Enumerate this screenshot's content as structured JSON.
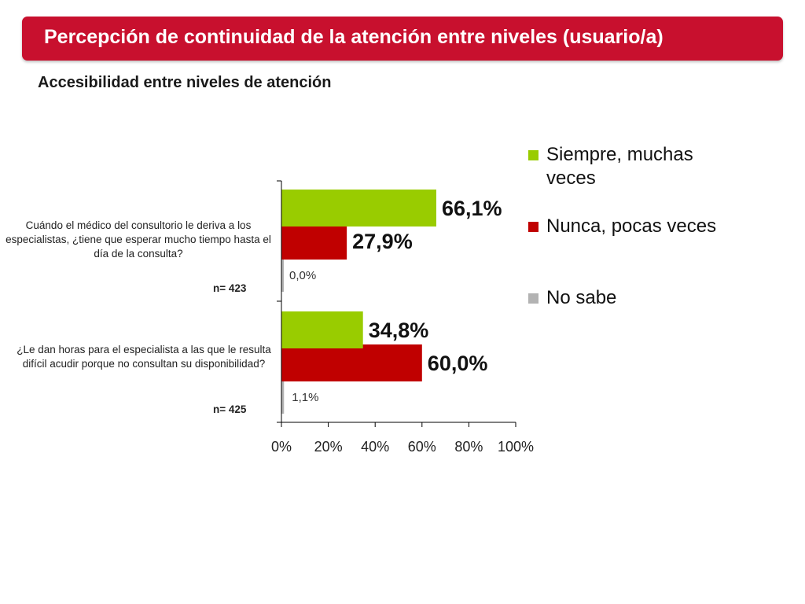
{
  "header": {
    "title": "Percepción de continuidad de la atención entre niveles (usuario/a)",
    "subtitle": "Accesibilidad entre niveles de atención"
  },
  "colors": {
    "banner": "#c8102e",
    "series_green": "#99cc00",
    "series_red": "#c00000",
    "series_gray": "#b3b3b3"
  },
  "chart_data": {
    "type": "bar",
    "orientation": "horizontal",
    "categories": [
      "Cuándo el médico del consultorio le deriva a los especialistas, ¿tiene que esperar mucho tiempo hasta el día de la consulta?",
      "¿Le dan horas para el especialista a las que le resulta difícil acudir porque no consultan su disponibilidad?"
    ],
    "sample_sizes": [
      "n= 423",
      "n= 425"
    ],
    "series": [
      {
        "name": "Siempre, muchas veces",
        "values": [
          66.1,
          34.8
        ],
        "labels": [
          "66,1%",
          "34,8%"
        ]
      },
      {
        "name": "Nunca, pocas veces",
        "values": [
          27.9,
          60.0
        ],
        "labels": [
          "27,9%",
          "60,0%"
        ]
      },
      {
        "name": "No sabe",
        "values": [
          0.0,
          1.1
        ],
        "labels": [
          "0,0%",
          "1,1%"
        ]
      }
    ],
    "xlim": [
      0,
      100
    ],
    "xticks": [
      "0%",
      "20%",
      "40%",
      "60%",
      "80%",
      "100%"
    ],
    "legend_position": "right",
    "grid": false
  }
}
